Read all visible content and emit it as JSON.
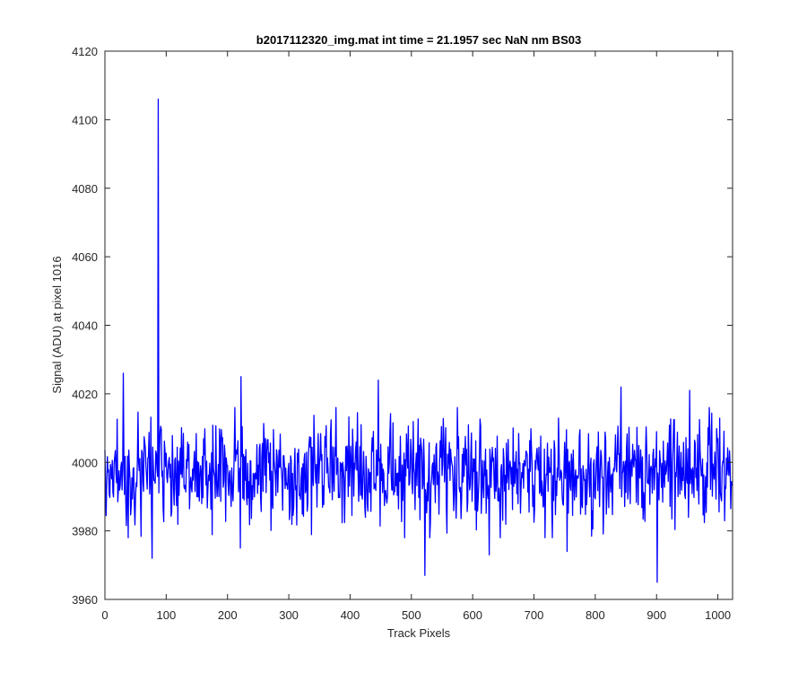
{
  "chart_data": {
    "type": "line",
    "title": "b2017112320_img.mat int time = 21.1957 sec  NaN nm BS03",
    "xlabel": "Track Pixels",
    "ylabel": "Signal (ADU) at pixel 1016",
    "xlim": [
      0,
      1024
    ],
    "ylim": [
      3960,
      4120
    ],
    "x_ticks": [
      0,
      100,
      200,
      300,
      400,
      500,
      600,
      700,
      800,
      900,
      1000
    ],
    "y_ticks": [
      3960,
      3980,
      4000,
      4020,
      4040,
      4060,
      4080,
      4100,
      4120
    ],
    "grid": false,
    "series_color": "#0000ff",
    "baseline": 3997,
    "noise_sigma": 7.5,
    "num_points": 1024,
    "notable_points": [
      {
        "x": 30,
        "y": 4026
      },
      {
        "x": 77,
        "y": 3972
      },
      {
        "x": 87,
        "y": 4106
      },
      {
        "x": 221,
        "y": 3975
      },
      {
        "x": 222,
        "y": 4025
      },
      {
        "x": 446,
        "y": 4024
      },
      {
        "x": 522,
        "y": 3967
      },
      {
        "x": 627,
        "y": 3973
      },
      {
        "x": 754,
        "y": 3974
      },
      {
        "x": 842,
        "y": 4022
      },
      {
        "x": 901,
        "y": 3965
      },
      {
        "x": 954,
        "y": 4021
      }
    ]
  }
}
